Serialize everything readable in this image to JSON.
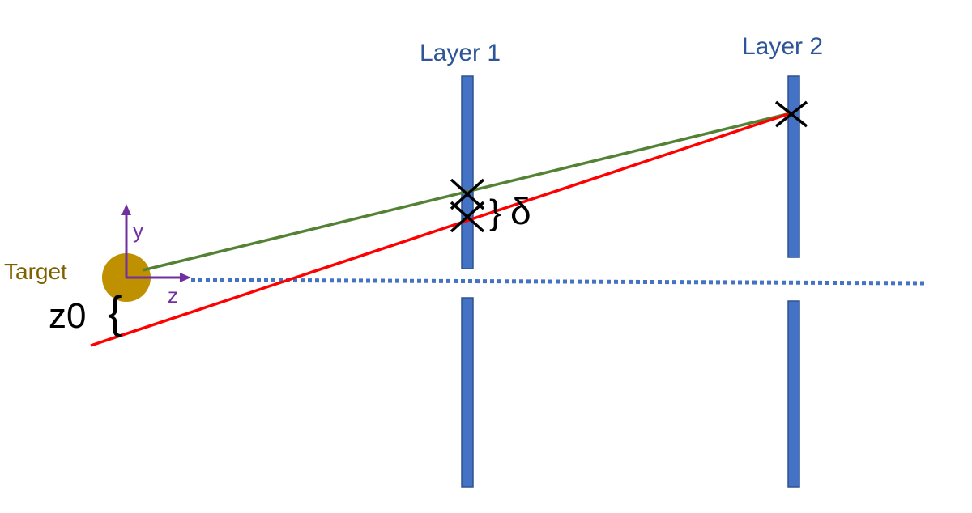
{
  "labels": {
    "layer1": "Layer 1",
    "layer2": "Layer 2",
    "target": "Target",
    "y_axis": "y",
    "z_axis": "z",
    "z0": "z0",
    "delta": "δ",
    "brace_delta": "}",
    "brace_z0": "{"
  },
  "colors": {
    "layer": "#4472c4",
    "layer_label": "#2e5597",
    "target": "#bf9000",
    "target_label": "#7f6000",
    "axis": "#7030a0",
    "green_track": "#548235",
    "red_track": "#ff0000",
    "beamline": "#4472c4",
    "markers": "#000000"
  }
}
